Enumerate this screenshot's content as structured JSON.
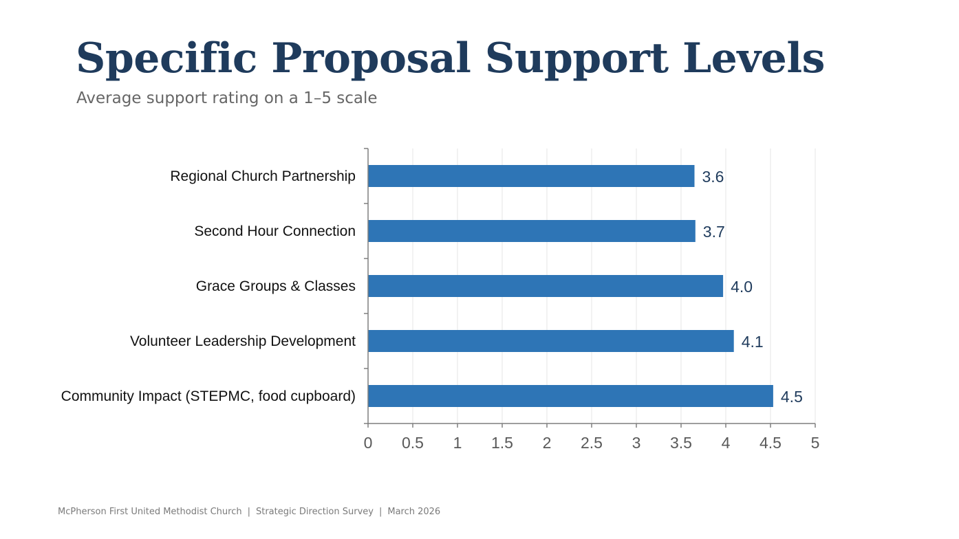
{
  "header": {
    "title": "Specific Proposal Support Levels",
    "subtitle": "Average support rating on a 1–5 scale"
  },
  "footer": {
    "organization": "McPherson First United Methodist Church",
    "separator": "|",
    "survey": "Strategic Direction Survey",
    "date": "March 2026"
  },
  "colors": {
    "bar": "#2e75b6",
    "title": "#1f3b5c",
    "value_label": "#1f3b5c",
    "category_label": "#111111",
    "tick_label": "#595959",
    "axis": "#7f7f7f",
    "grid": "#e6e6e6"
  },
  "chart_data": {
    "type": "bar",
    "orientation": "horizontal",
    "categories": [
      "Regional Church Partnership",
      "Second Hour Connection",
      "Grace Groups & Classes",
      "Volunteer Leadership Development",
      "Community Impact (STEPMC, food cupboard)"
    ],
    "values": [
      3.65,
      3.66,
      3.97,
      4.09,
      4.53
    ],
    "value_labels": [
      "3.6",
      "3.7",
      "4.0",
      "4.1",
      "4.5"
    ],
    "xlim": [
      0,
      5
    ],
    "xticks": [
      0,
      0.5,
      1,
      1.5,
      2,
      2.5,
      3,
      3.5,
      4,
      4.5,
      5
    ],
    "xtick_labels": [
      "0",
      "0.5",
      "1",
      "1.5",
      "2",
      "2.5",
      "3",
      "3.5",
      "4",
      "4.5",
      "5"
    ],
    "grid": true,
    "legend": "none"
  }
}
